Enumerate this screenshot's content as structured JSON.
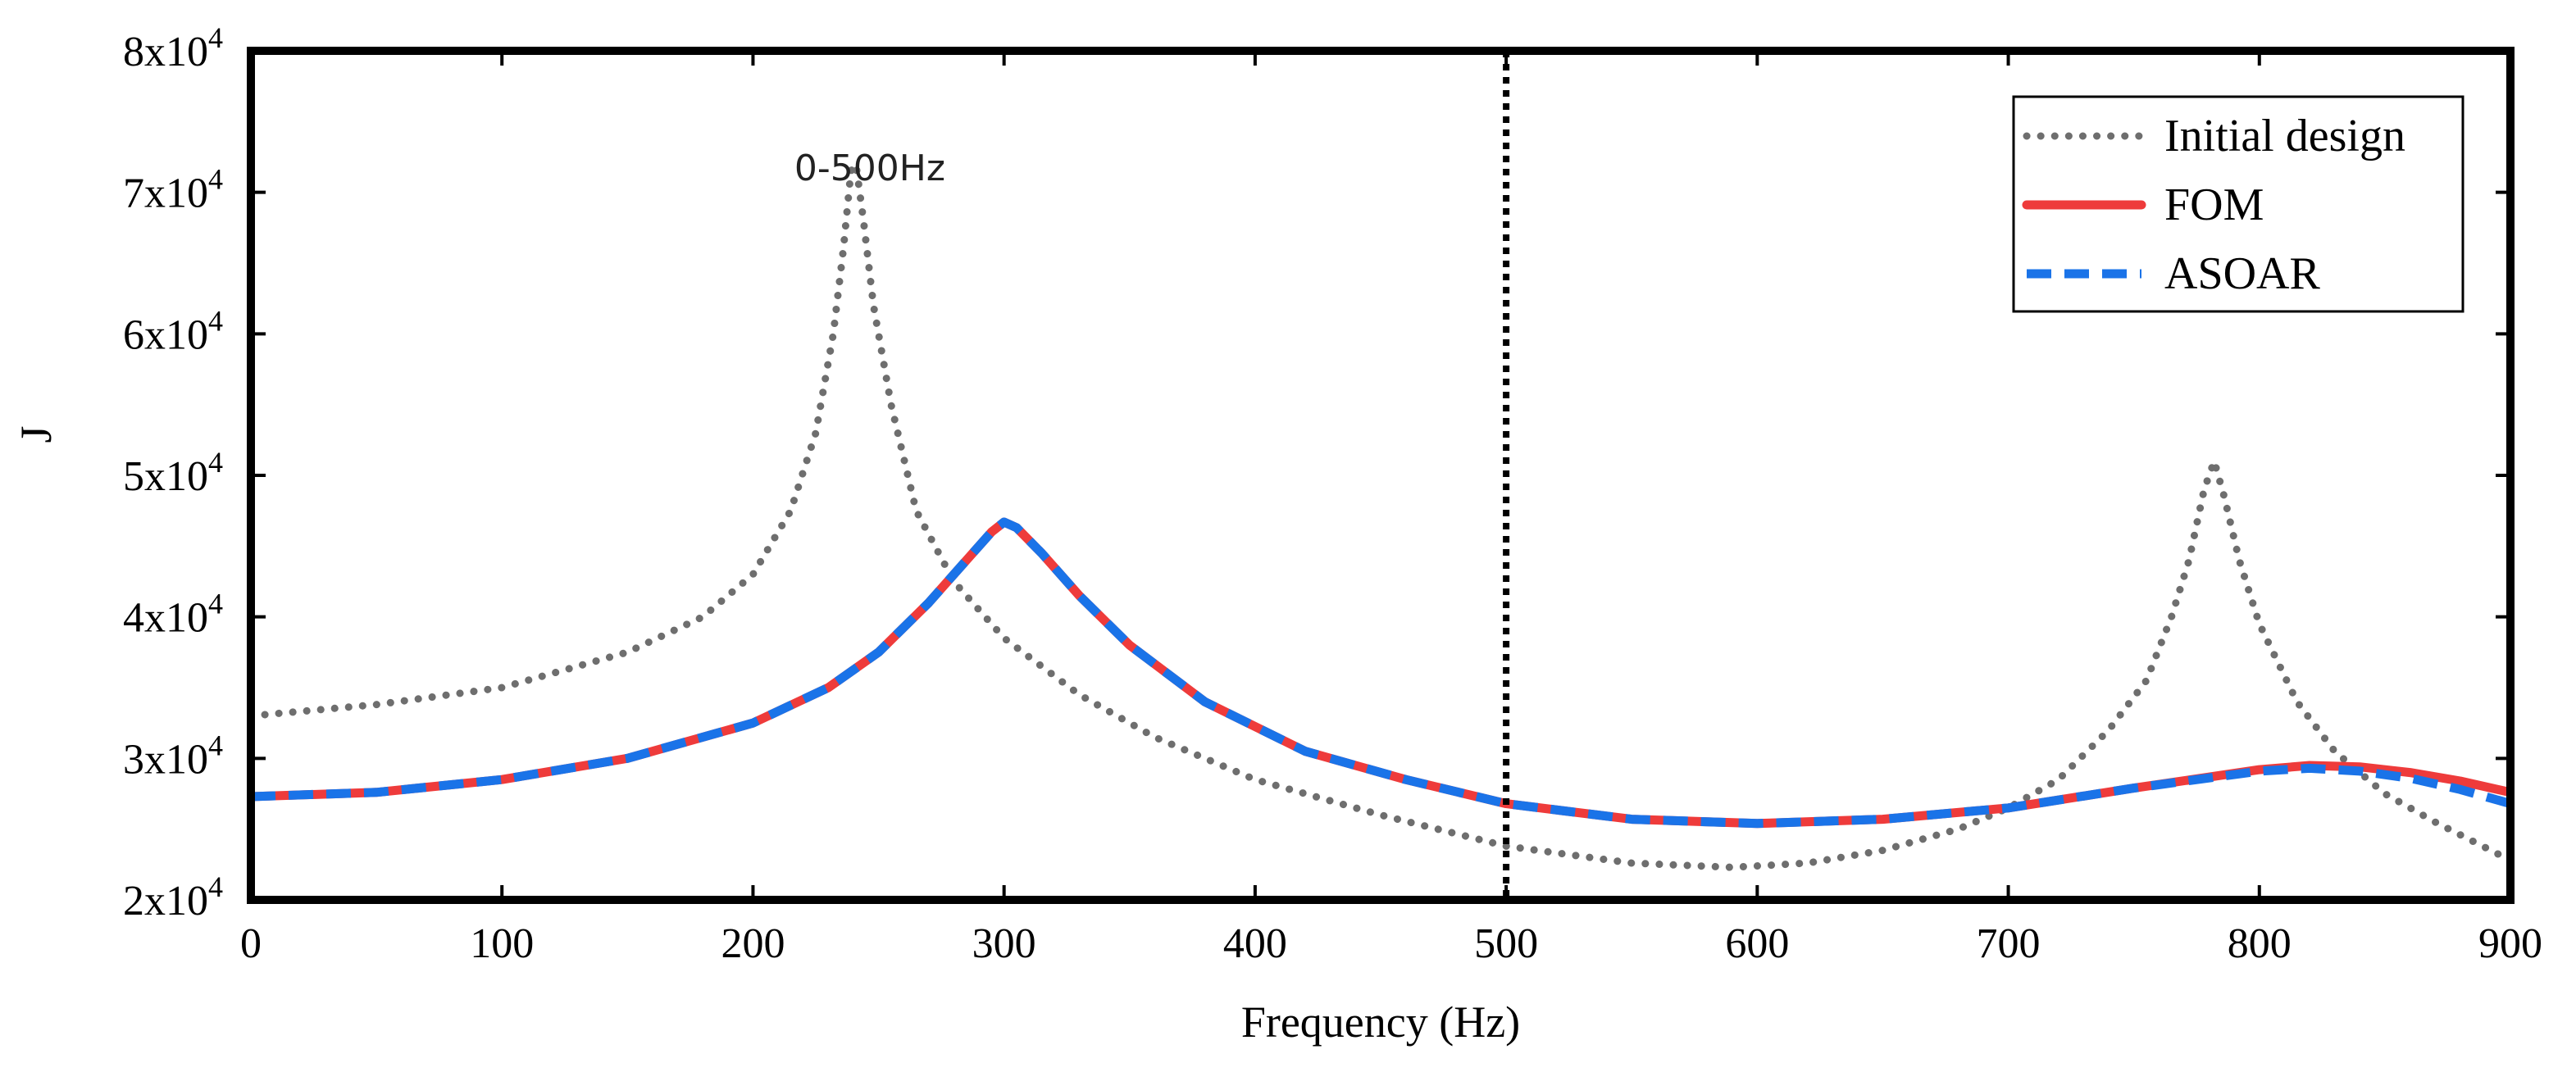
{
  "chart_data": {
    "type": "line",
    "title": "",
    "xlabel": "Frequency (Hz)",
    "ylabel": "J",
    "xlim": [
      0,
      900
    ],
    "ylim": [
      20000,
      80000
    ],
    "xticks": [
      0,
      100,
      200,
      300,
      400,
      500,
      600,
      700,
      800,
      900
    ],
    "xtick_labels": [
      "0",
      "100",
      "200",
      "300",
      "400",
      "500",
      "600",
      "700",
      "800",
      "900"
    ],
    "yticks": [
      20000,
      30000,
      40000,
      50000,
      60000,
      70000,
      80000
    ],
    "ytick_base": [
      "2x10",
      "3x10",
      "4x10",
      "5x10",
      "6x10",
      "7x10",
      "8x10"
    ],
    "ytick_exp": "4",
    "legend_position": "top-right",
    "annotation": {
      "text": "0-500Hz",
      "x": 240,
      "y": 72000
    },
    "vline": {
      "x": 500,
      "color": "#000000",
      "style": "dotted"
    },
    "series": [
      {
        "name": "Initial design",
        "color": "#6e6e6e",
        "style": "dotted",
        "x": [
          0,
          50,
          100,
          150,
          180,
          200,
          215,
          225,
          232,
          236,
          239,
          241,
          244,
          248,
          255,
          265,
          280,
          300,
          330,
          360,
          400,
          450,
          500,
          550,
          590,
          620,
          650,
          680,
          700,
          720,
          740,
          755,
          765,
          772,
          778,
          782,
          786,
          792,
          800,
          815,
          830,
          850,
          870,
          900
        ],
        "y": [
          33000,
          33800,
          35000,
          37500,
          40000,
          43000,
          47500,
          53000,
          60000,
          66000,
          71500,
          72000,
          68000,
          62000,
          55000,
          47500,
          42500,
          38500,
          34500,
          31500,
          28500,
          26000,
          23800,
          22600,
          22300,
          22600,
          23500,
          25000,
          26500,
          28500,
          32000,
          35500,
          40000,
          44000,
          49000,
          51000,
          48500,
          44000,
          39500,
          34000,
          30500,
          27500,
          25500,
          22800
        ]
      },
      {
        "name": "FOM",
        "color": "#ee3b3b",
        "style": "solid",
        "x": [
          0,
          50,
          100,
          150,
          200,
          230,
          250,
          270,
          285,
          295,
          300,
          305,
          315,
          330,
          350,
          380,
          420,
          460,
          500,
          550,
          600,
          650,
          700,
          750,
          800,
          820,
          840,
          860,
          880,
          900
        ],
        "y": [
          27300,
          27600,
          28500,
          30000,
          32500,
          35000,
          37500,
          41000,
          44000,
          46000,
          46700,
          46300,
          44500,
          41500,
          38000,
          34000,
          30500,
          28500,
          26800,
          25700,
          25400,
          25700,
          26500,
          27900,
          29200,
          29500,
          29400,
          29000,
          28400,
          27600
        ]
      },
      {
        "name": "ASOAR",
        "color": "#1a73e8",
        "style": "dashed",
        "x": [
          0,
          50,
          100,
          150,
          200,
          230,
          250,
          270,
          285,
          295,
          300,
          305,
          315,
          330,
          350,
          380,
          420,
          460,
          500,
          550,
          600,
          650,
          700,
          750,
          800,
          820,
          840,
          860,
          880,
          900
        ],
        "y": [
          27300,
          27600,
          28500,
          30000,
          32500,
          35000,
          37500,
          41000,
          44000,
          46000,
          46700,
          46300,
          44500,
          41500,
          38000,
          34000,
          30500,
          28500,
          26800,
          25700,
          25400,
          25700,
          26500,
          27900,
          29100,
          29300,
          29100,
          28600,
          27800,
          26800
        ]
      }
    ]
  }
}
